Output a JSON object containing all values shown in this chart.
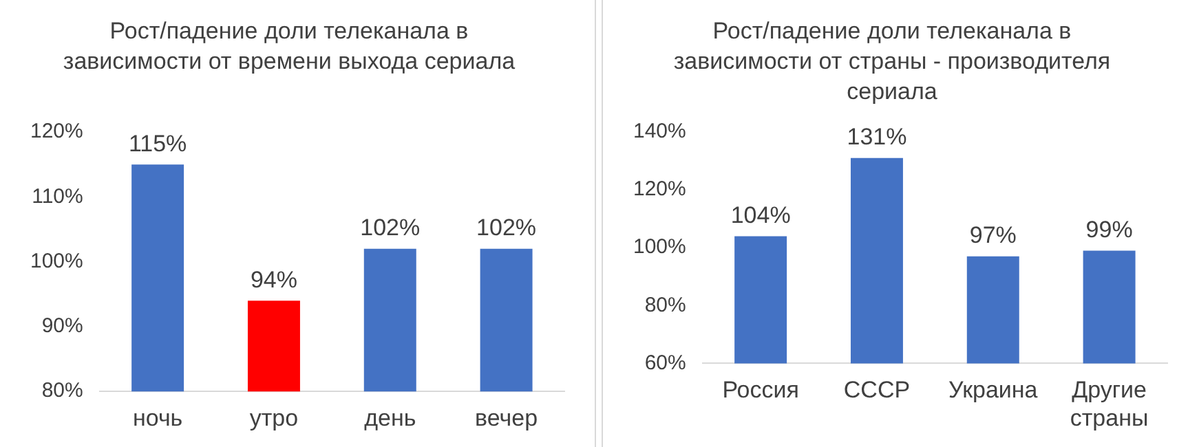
{
  "chart_data": [
    {
      "type": "bar",
      "title": "Рост/падение доли телеканала в зависимости от времени выхода сериала",
      "categories": [
        "ночь",
        "утро",
        "день",
        "вечер"
      ],
      "values": [
        115,
        94,
        102,
        102
      ],
      "colors": [
        "#4472c4",
        "#ff0000",
        "#4472c4",
        "#4472c4"
      ],
      "value_labels": [
        "115%",
        "94%",
        "102%",
        "102%"
      ],
      "ylim": [
        80,
        120
      ],
      "yticks": [
        {
          "value": 80,
          "label": "80%"
        },
        {
          "value": 90,
          "label": "90%"
        },
        {
          "value": 100,
          "label": "100%"
        },
        {
          "value": 110,
          "label": "110%"
        },
        {
          "value": 120,
          "label": "120%"
        }
      ],
      "grid": false,
      "legend": false
    },
    {
      "type": "bar",
      "title": "Рост/падение доли телеканала в зависимости от страны - производителя сериала",
      "categories": [
        "Россия",
        "СССР",
        "Украина",
        "Другие страны"
      ],
      "values": [
        104,
        131,
        97,
        99
      ],
      "colors": [
        "#4472c4",
        "#4472c4",
        "#4472c4",
        "#4472c4"
      ],
      "value_labels": [
        "104%",
        "131%",
        "97%",
        "99%"
      ],
      "ylim": [
        60,
        140
      ],
      "yticks": [
        {
          "value": 60,
          "label": "60%"
        },
        {
          "value": 80,
          "label": "80%"
        },
        {
          "value": 100,
          "label": "100%"
        },
        {
          "value": 120,
          "label": "120%"
        },
        {
          "value": 140,
          "label": "140%"
        }
      ],
      "grid": false,
      "legend": false
    }
  ]
}
